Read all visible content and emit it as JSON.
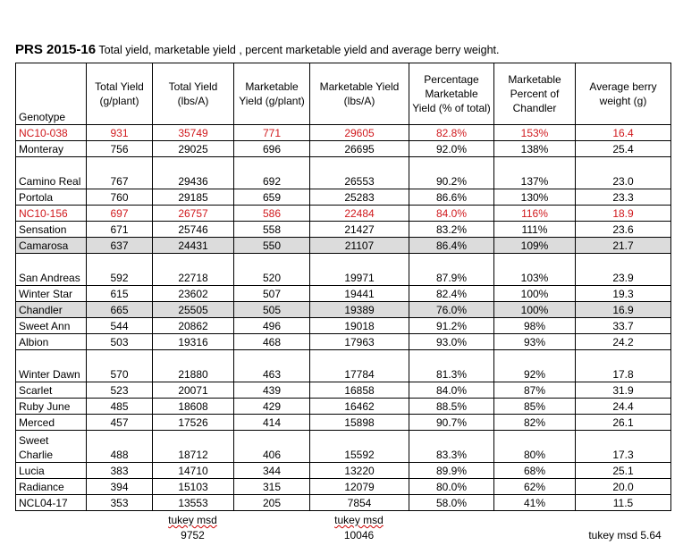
{
  "title": {
    "bold": "PRS 2015-16",
    "text": "Total yield, marketable yield , percent marketable yield and average berry weight."
  },
  "headers": [
    "Genotype",
    "Total Yield (g/plant)",
    "Total Yield (lbs/A)",
    "Marketable Yield (g/plant)",
    "Marketable Yield (lbs/A)",
    "Percentage Marketable Yield (% of total)",
    "Marketable Percent of Chandler",
    "Average berry weight (g)"
  ],
  "rows": [
    {
      "g": "NC10-038",
      "v": [
        "931",
        "35749",
        "771",
        "29605",
        "82.8%",
        "153%",
        "16.4"
      ],
      "style": "red"
    },
    {
      "g": "Monteray",
      "v": [
        "756",
        "29025",
        "696",
        "26695",
        "92.0%",
        "138%",
        "25.4"
      ]
    },
    {
      "g": "Camino Real",
      "v": [
        "767",
        "29436",
        "692",
        "26553",
        "90.2%",
        "137%",
        "23.0"
      ],
      "style": "two"
    },
    {
      "g": "Portola",
      "v": [
        "760",
        "29185",
        "659",
        "25283",
        "86.6%",
        "130%",
        "23.3"
      ]
    },
    {
      "g": "NC10-156",
      "v": [
        "697",
        "26757",
        "586",
        "22484",
        "84.0%",
        "116%",
        "18.9"
      ],
      "style": "red"
    },
    {
      "g": "Sensation",
      "v": [
        "671",
        "25746",
        "558",
        "21427",
        "83.2%",
        "111%",
        "23.6"
      ]
    },
    {
      "g": "Camarosa",
      "v": [
        "637",
        "24431",
        "550",
        "21107",
        "86.4%",
        "109%",
        "21.7"
      ],
      "style": "gray"
    },
    {
      "g": "San Andreas",
      "v": [
        "592",
        "22718",
        "520",
        "19971",
        "87.9%",
        "103%",
        "23.9"
      ],
      "style": "two"
    },
    {
      "g": "Winter Star",
      "v": [
        "615",
        "23602",
        "507",
        "19441",
        "82.4%",
        "100%",
        "19.3"
      ]
    },
    {
      "g": "Chandler",
      "v": [
        "665",
        "25505",
        "505",
        "19389",
        "76.0%",
        "100%",
        "16.9"
      ],
      "style": "gray"
    },
    {
      "g": "Sweet Ann",
      "v": [
        "544",
        "20862",
        "496",
        "19018",
        "91.2%",
        "98%",
        "33.7"
      ]
    },
    {
      "g": "Albion",
      "v": [
        "503",
        "19316",
        "468",
        "17963",
        "93.0%",
        "93%",
        "24.2"
      ]
    },
    {
      "g": "Winter Dawn",
      "v": [
        "570",
        "21880",
        "463",
        "17784",
        "81.3%",
        "92%",
        "17.8"
      ],
      "style": "two"
    },
    {
      "g": "Scarlet",
      "v": [
        "523",
        "20071",
        "439",
        "16858",
        "84.0%",
        "87%",
        "31.9"
      ]
    },
    {
      "g": "Ruby June",
      "v": [
        "485",
        "18608",
        "429",
        "16462",
        "88.5%",
        "85%",
        "24.4"
      ]
    },
    {
      "g": "Merced",
      "v": [
        "457",
        "17526",
        "414",
        "15898",
        "90.7%",
        "82%",
        "26.1"
      ]
    },
    {
      "g": "Sweet Charlie",
      "v": [
        "488",
        "18712",
        "406",
        "15592",
        "83.3%",
        "80%",
        "17.3"
      ],
      "style": "two"
    },
    {
      "g": "Lucia",
      "v": [
        "383",
        "14710",
        "344",
        "13220",
        "89.9%",
        "68%",
        "25.1"
      ]
    },
    {
      "g": "Radiance",
      "v": [
        "394",
        "15103",
        "315",
        "12079",
        "80.0%",
        "62%",
        "20.0"
      ]
    },
    {
      "g": "NCL04-17",
      "v": [
        "353",
        "13553",
        "205",
        "7854",
        "58.0%",
        "41%",
        "11.5"
      ]
    }
  ],
  "footer": {
    "label": "tukey msd",
    "total_lbs": "9752",
    "marketable_lbs": "10046",
    "berry_weight": "tukey msd 5.64"
  }
}
